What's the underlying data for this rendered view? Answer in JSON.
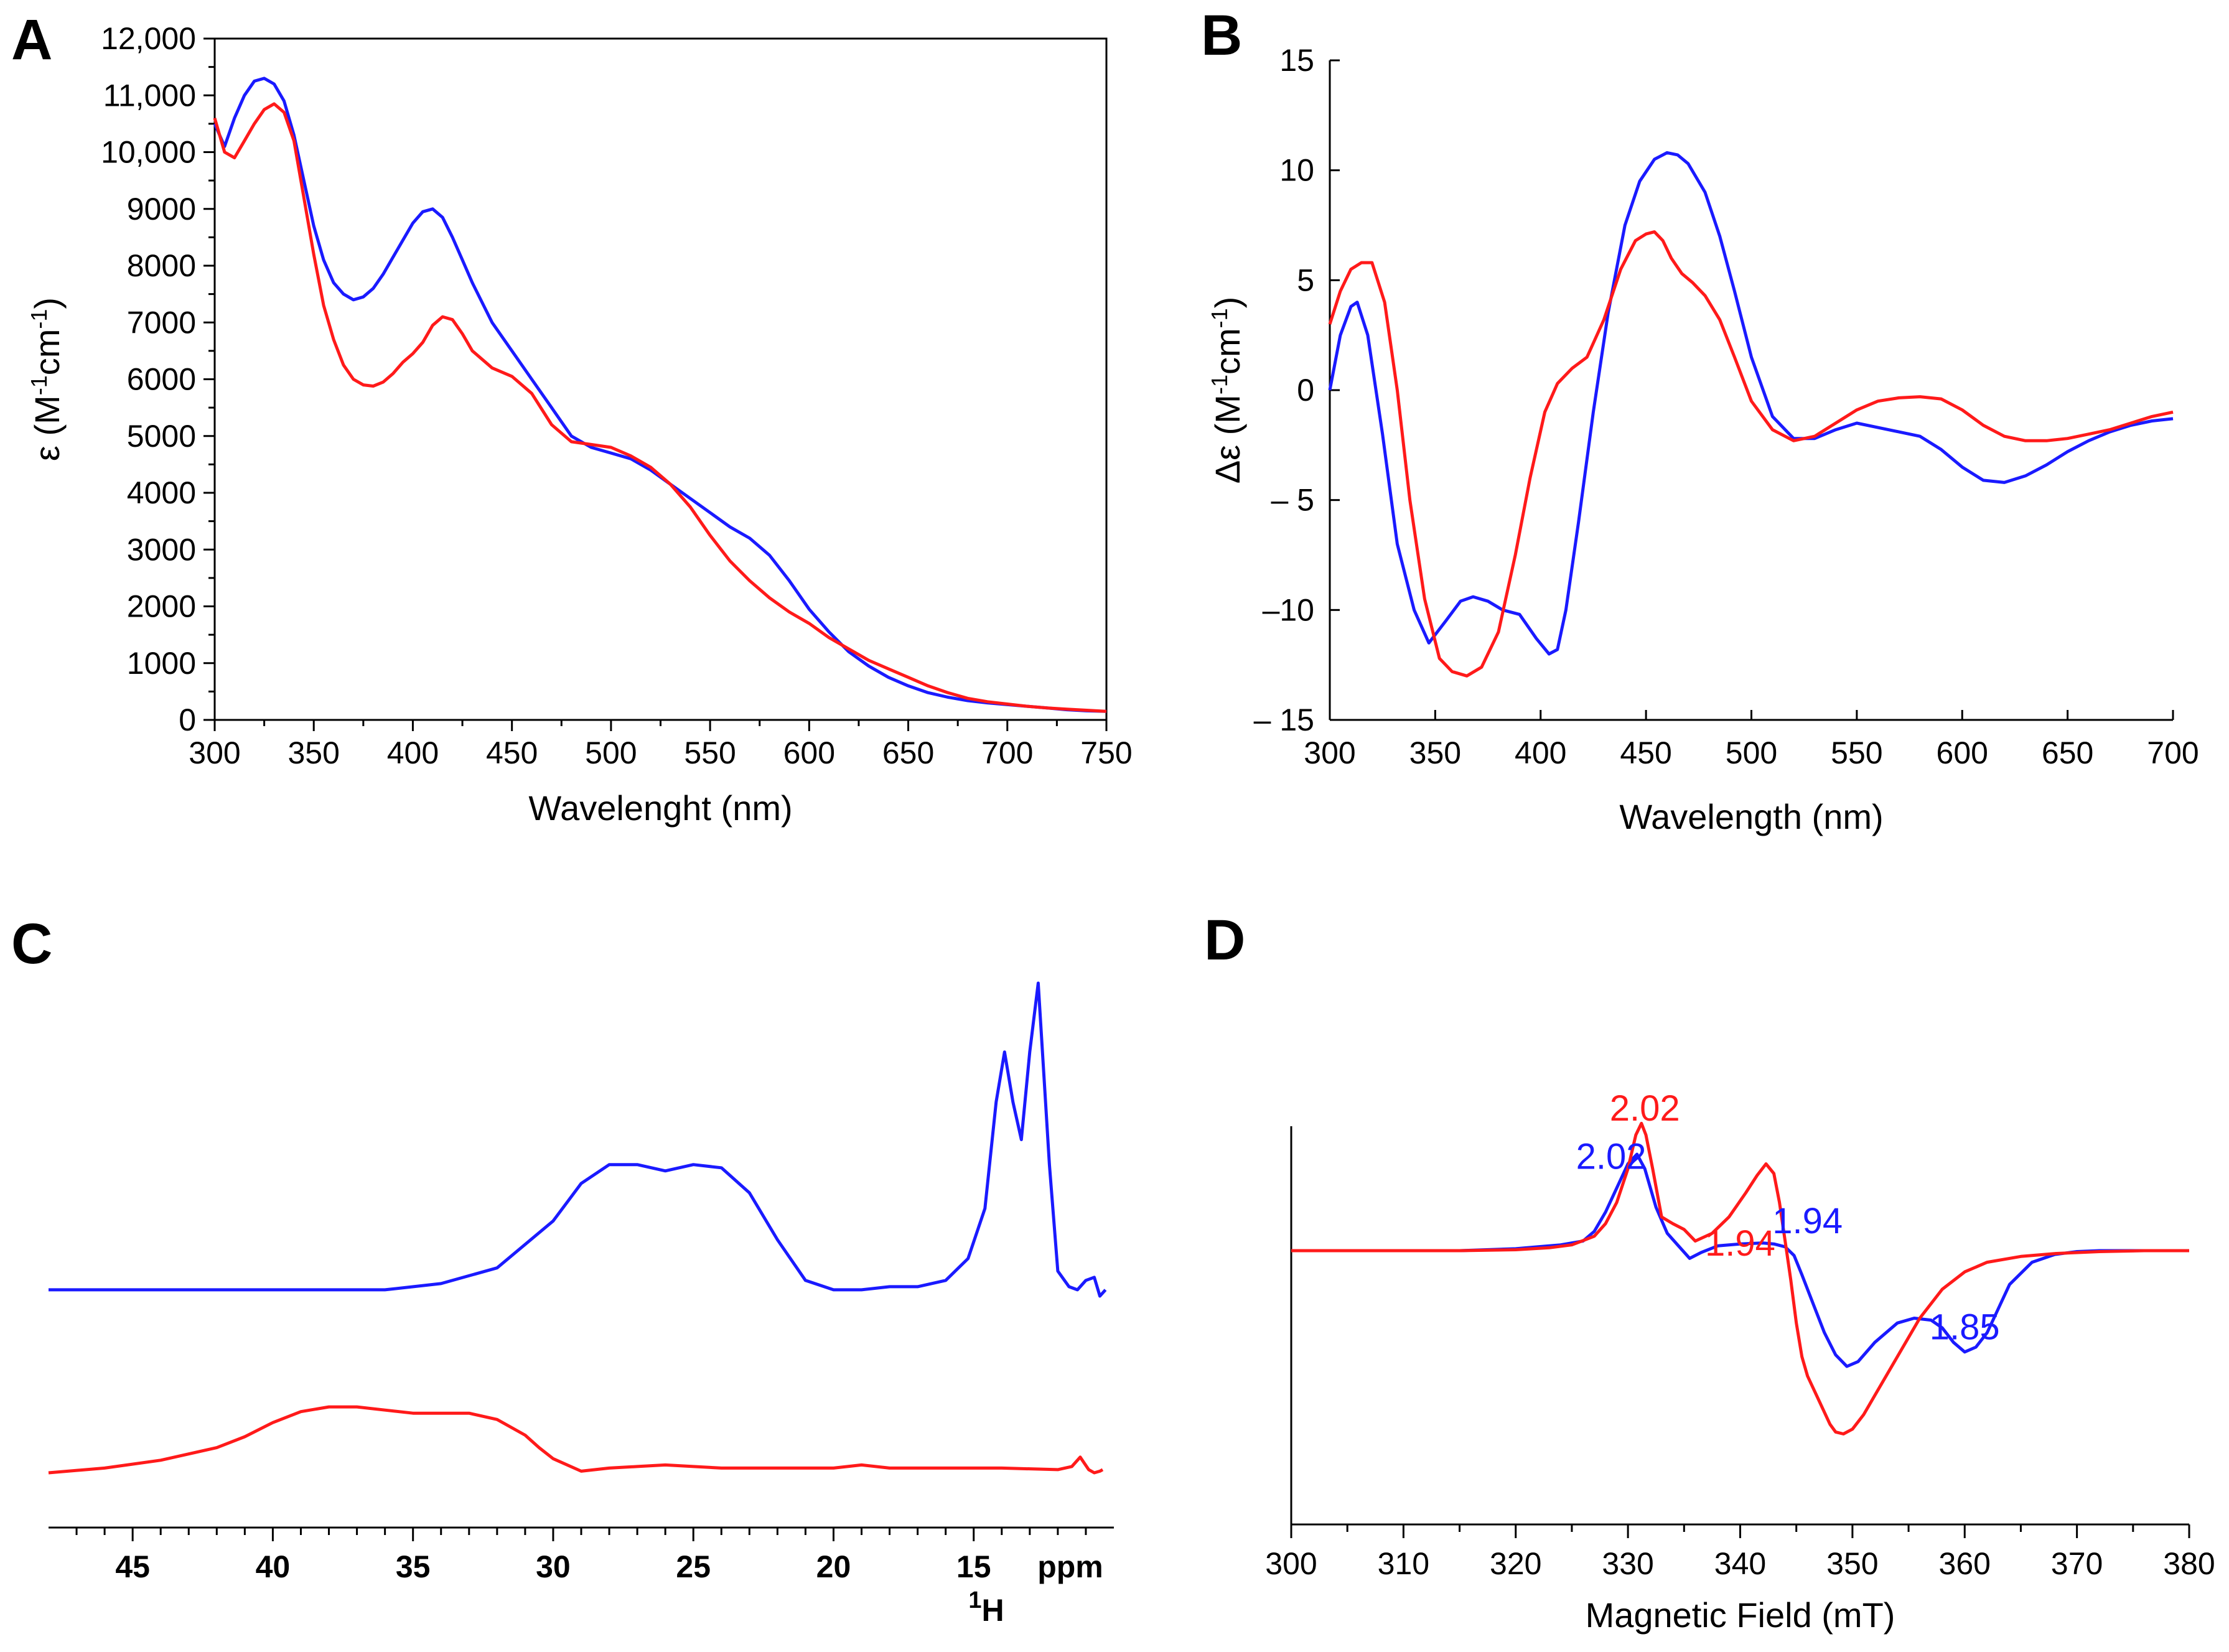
{
  "panels": {
    "A": {
      "letter": "A"
    },
    "B": {
      "letter": "B"
    },
    "C": {
      "letter": "C"
    },
    "D": {
      "letter": "D"
    }
  },
  "colors": {
    "blue": "#1a1aff",
    "red": "#ff1a1a"
  },
  "chart_data": [
    {
      "panel": "A",
      "type": "line",
      "xlabel": "Wavelenght (nm)",
      "ylabel": "ε (M-1cm-1)",
      "xlim": [
        300,
        750
      ],
      "ylim": [
        0,
        12000
      ],
      "x_ticks": [
        300,
        350,
        400,
        450,
        500,
        550,
        600,
        650,
        700,
        750
      ],
      "y_ticks": [
        0,
        1000,
        2000,
        3000,
        4000,
        5000,
        6000,
        7000,
        8000,
        9000,
        10000,
        11000,
        12000
      ],
      "y_tick_labels": [
        "0",
        "1000",
        "2000",
        "3000",
        "4000",
        "5000",
        "6000",
        "7000",
        "8000",
        "9000",
        "10,000",
        "11,000",
        "12,000"
      ],
      "series": [
        {
          "color": "blue",
          "x": [
            300,
            305,
            310,
            315,
            320,
            325,
            330,
            335,
            340,
            345,
            350,
            355,
            360,
            365,
            370,
            375,
            380,
            385,
            390,
            395,
            400,
            405,
            410,
            415,
            420,
            425,
            430,
            440,
            450,
            460,
            470,
            480,
            490,
            500,
            510,
            520,
            530,
            540,
            550,
            560,
            570,
            580,
            590,
            600,
            610,
            620,
            630,
            640,
            650,
            660,
            670,
            680,
            690,
            700,
            710,
            720,
            730,
            740,
            750
          ],
          "y": [
            10500,
            10100,
            10600,
            11000,
            11250,
            11300,
            11200,
            10900,
            10300,
            9500,
            8700,
            8100,
            7700,
            7500,
            7400,
            7450,
            7600,
            7850,
            8150,
            8450,
            8750,
            8950,
            9000,
            8850,
            8500,
            8100,
            7700,
            7000,
            6500,
            6000,
            5500,
            5000,
            4800,
            4700,
            4600,
            4400,
            4150,
            3900,
            3650,
            3400,
            3200,
            2900,
            2450,
            1950,
            1550,
            1200,
            950,
            750,
            600,
            480,
            400,
            340,
            300,
            270,
            240,
            210,
            180,
            160,
            150
          ]
        },
        {
          "color": "red",
          "x": [
            300,
            305,
            310,
            315,
            320,
            325,
            330,
            335,
            340,
            345,
            350,
            355,
            360,
            365,
            370,
            375,
            380,
            385,
            390,
            395,
            400,
            405,
            410,
            415,
            420,
            425,
            430,
            440,
            450,
            460,
            470,
            480,
            490,
            500,
            510,
            520,
            530,
            540,
            550,
            560,
            570,
            580,
            590,
            600,
            610,
            620,
            630,
            640,
            650,
            660,
            670,
            680,
            690,
            700,
            710,
            720,
            730,
            740,
            750
          ],
          "y": [
            10600,
            10000,
            9900,
            10200,
            10500,
            10750,
            10850,
            10700,
            10200,
            9200,
            8200,
            7300,
            6700,
            6250,
            6000,
            5900,
            5880,
            5950,
            6100,
            6300,
            6450,
            6650,
            6950,
            7100,
            7050,
            6800,
            6500,
            6200,
            6050,
            5750,
            5200,
            4900,
            4850,
            4800,
            4650,
            4450,
            4150,
            3750,
            3250,
            2800,
            2450,
            2150,
            1900,
            1700,
            1450,
            1250,
            1050,
            900,
            750,
            600,
            480,
            380,
            320,
            280,
            240,
            210,
            190,
            170,
            150
          ]
        }
      ]
    },
    {
      "panel": "B",
      "type": "line",
      "xlabel": "Wavelength (nm)",
      "ylabel": "Δε (M-1cm-1)",
      "xlim": [
        300,
        700
      ],
      "ylim": [
        -15,
        15
      ],
      "x_ticks": [
        300,
        350,
        400,
        450,
        500,
        550,
        600,
        650,
        700
      ],
      "y_ticks": [
        -15,
        -10,
        -5,
        0,
        5,
        10,
        15
      ],
      "y_tick_labels": [
        "– 15",
        "–10",
        "– 5",
        "0",
        "5",
        "10",
        "15"
      ],
      "series": [
        {
          "color": "blue",
          "x": [
            300,
            305,
            310,
            313,
            318,
            325,
            332,
            340,
            347,
            355,
            362,
            368,
            375,
            382,
            390,
            398,
            404,
            408,
            412,
            418,
            425,
            432,
            440,
            447,
            454,
            460,
            465,
            470,
            478,
            485,
            492,
            500,
            510,
            520,
            530,
            540,
            550,
            560,
            570,
            580,
            590,
            600,
            610,
            620,
            630,
            640,
            650,
            660,
            670,
            680,
            690,
            700
          ],
          "y": [
            0,
            2.5,
            3.8,
            4,
            2.5,
            -2,
            -7,
            -10,
            -11.5,
            -10.5,
            -9.6,
            -9.4,
            -9.6,
            -10,
            -10.2,
            -11.3,
            -12,
            -11.8,
            -10,
            -6,
            -1,
            3.5,
            7.5,
            9.5,
            10.5,
            10.8,
            10.7,
            10.3,
            9,
            7,
            4.5,
            1.5,
            -1.2,
            -2.2,
            -2.2,
            -1.8,
            -1.5,
            -1.7,
            -1.9,
            -2.1,
            -2.7,
            -3.5,
            -4.1,
            -4.2,
            -3.9,
            -3.4,
            -2.8,
            -2.3,
            -1.9,
            -1.6,
            -1.4,
            -1.3
          ]
        },
        {
          "color": "red",
          "x": [
            300,
            305,
            310,
            315,
            320,
            326,
            332,
            338,
            345,
            352,
            358,
            365,
            372,
            380,
            388,
            395,
            402,
            408,
            415,
            422,
            430,
            438,
            445,
            450,
            454,
            458,
            462,
            467,
            472,
            478,
            485,
            492,
            500,
            510,
            520,
            530,
            540,
            550,
            560,
            570,
            580,
            590,
            600,
            610,
            620,
            630,
            640,
            650,
            660,
            670,
            680,
            690,
            700
          ],
          "y": [
            3,
            4.5,
            5.5,
            5.8,
            5.8,
            4,
            0,
            -5,
            -9.5,
            -12.2,
            -12.8,
            -13,
            -12.6,
            -11,
            -7.5,
            -4,
            -1,
            0.3,
            1,
            1.5,
            3.2,
            5.5,
            6.8,
            7.1,
            7.2,
            6.8,
            6,
            5.3,
            4.9,
            4.3,
            3.2,
            1.5,
            -0.5,
            -1.8,
            -2.3,
            -2.1,
            -1.5,
            -0.9,
            -0.5,
            -0.35,
            -0.3,
            -0.4,
            -0.9,
            -1.6,
            -2.1,
            -2.3,
            -2.3,
            -2.2,
            -2,
            -1.8,
            -1.5,
            -1.2,
            -1
          ]
        }
      ]
    },
    {
      "panel": "C",
      "type": "line",
      "xlabel": "1H",
      "x_unit_label": "ppm",
      "xlim": [
        48,
        10
      ],
      "x_ticks": [
        45,
        40,
        35,
        30,
        25,
        20,
        15
      ],
      "series": [
        {
          "color": "blue",
          "x": [
            48,
            46,
            44,
            42,
            40,
            38,
            36,
            34,
            32,
            30,
            29,
            28,
            27,
            26,
            25,
            24,
            23,
            22,
            21,
            20,
            19,
            18,
            17,
            16,
            15.2,
            14.6,
            14.2,
            13.9,
            13.6,
            13.3,
            13.0,
            12.7,
            12.3,
            12.0,
            11.6,
            11.3,
            11.0,
            10.7,
            10.5,
            10.3
          ],
          "y": [
            0.02,
            0.02,
            0.02,
            0.02,
            0.02,
            0.02,
            0.02,
            0.04,
            0.09,
            0.24,
            0.36,
            0.42,
            0.42,
            0.4,
            0.42,
            0.41,
            0.33,
            0.18,
            0.05,
            0.02,
            0.02,
            0.03,
            0.03,
            0.05,
            0.12,
            0.28,
            0.62,
            0.78,
            0.62,
            0.5,
            0.78,
            1.0,
            0.42,
            0.08,
            0.03,
            0.02,
            0.05,
            0.06,
            0.0,
            0.02
          ]
        },
        {
          "color": "red",
          "x": [
            48,
            46,
            44,
            42,
            41,
            40,
            39,
            38,
            37,
            36,
            35,
            34,
            33,
            32,
            31,
            30.5,
            30,
            29,
            28,
            27,
            26,
            25,
            24,
            22,
            20,
            19,
            18,
            16,
            14,
            12,
            11.5,
            11.2,
            10.9,
            10.7,
            10.5,
            10.4
          ],
          "y": [
            0.02,
            0.05,
            0.1,
            0.18,
            0.25,
            0.34,
            0.41,
            0.44,
            0.44,
            0.42,
            0.4,
            0.4,
            0.4,
            0.36,
            0.26,
            0.18,
            0.11,
            0.03,
            0.05,
            0.06,
            0.07,
            0.06,
            0.05,
            0.05,
            0.05,
            0.07,
            0.05,
            0.05,
            0.05,
            0.04,
            0.06,
            0.12,
            0.04,
            0.02,
            0.03,
            0.04
          ]
        }
      ]
    },
    {
      "panel": "D",
      "type": "line",
      "xlabel": "Magnetic Field (mT)",
      "xlim": [
        300,
        380
      ],
      "x_ticks": [
        300,
        310,
        320,
        330,
        340,
        350,
        360,
        370,
        380
      ],
      "annotations": [
        {
          "text": "2.02",
          "color": "red",
          "x": 331.5,
          "y": 1.35
        },
        {
          "text": "2.02",
          "color": "blue",
          "x": 328.5,
          "y": 0.85
        },
        {
          "text": "1.94",
          "color": "blue",
          "x": 346,
          "y": 0.18
        },
        {
          "text": "1.94",
          "color": "red",
          "x": 340,
          "y": -0.05
        },
        {
          "text": "1.85",
          "color": "blue",
          "x": 360,
          "y": -0.92
        }
      ],
      "series": [
        {
          "color": "blue",
          "x": [
            300,
            305,
            310,
            315,
            320,
            322,
            324,
            326,
            327,
            328,
            329,
            330,
            330.8,
            331.5,
            332.5,
            333.5,
            334.5,
            335.5,
            336.5,
            338,
            340,
            342,
            343,
            344,
            344.8,
            345.5,
            346.5,
            347.5,
            348.5,
            349.5,
            350.5,
            352,
            354,
            355.5,
            357,
            358,
            359,
            360,
            361,
            362,
            363,
            364,
            366,
            368,
            370,
            372,
            375,
            380
          ],
          "y": [
            0,
            0,
            0,
            0,
            0.02,
            0.04,
            0.06,
            0.1,
            0.2,
            0.4,
            0.65,
            0.9,
            1.0,
            0.85,
            0.45,
            0.18,
            0.05,
            -0.08,
            -0.02,
            0.05,
            0.07,
            0.08,
            0.07,
            0.04,
            -0.05,
            -0.25,
            -0.55,
            -0.85,
            -1.08,
            -1.2,
            -1.15,
            -0.95,
            -0.75,
            -0.7,
            -0.72,
            -0.8,
            -0.95,
            -1.05,
            -1.0,
            -0.85,
            -0.6,
            -0.35,
            -0.12,
            -0.04,
            -0.01,
            0,
            0,
            0
          ]
        },
        {
          "color": "red",
          "x": [
            300,
            305,
            310,
            315,
            320,
            323,
            325,
            327,
            328,
            329,
            330,
            330.7,
            331.2,
            331.6,
            332.2,
            333,
            334,
            335,
            336,
            337.5,
            339,
            340.5,
            341.5,
            342.3,
            343,
            343.5,
            344,
            344.5,
            345,
            345.5,
            346,
            347,
            348,
            348.5,
            349.2,
            350,
            351,
            352,
            354,
            356,
            358,
            360,
            362,
            365,
            368,
            372,
            376,
            380
          ],
          "y": [
            0,
            0,
            0,
            0,
            0.01,
            0.03,
            0.06,
            0.15,
            0.28,
            0.5,
            0.85,
            1.2,
            1.32,
            1.2,
            0.85,
            0.35,
            0.28,
            0.22,
            0.1,
            0.18,
            0.35,
            0.6,
            0.78,
            0.9,
            0.8,
            0.5,
            0.1,
            -0.3,
            -0.75,
            -1.1,
            -1.3,
            -1.55,
            -1.8,
            -1.88,
            -1.9,
            -1.85,
            -1.7,
            -1.5,
            -1.1,
            -0.7,
            -0.4,
            -0.22,
            -0.12,
            -0.06,
            -0.03,
            -0.01,
            0,
            0
          ]
        }
      ]
    }
  ]
}
